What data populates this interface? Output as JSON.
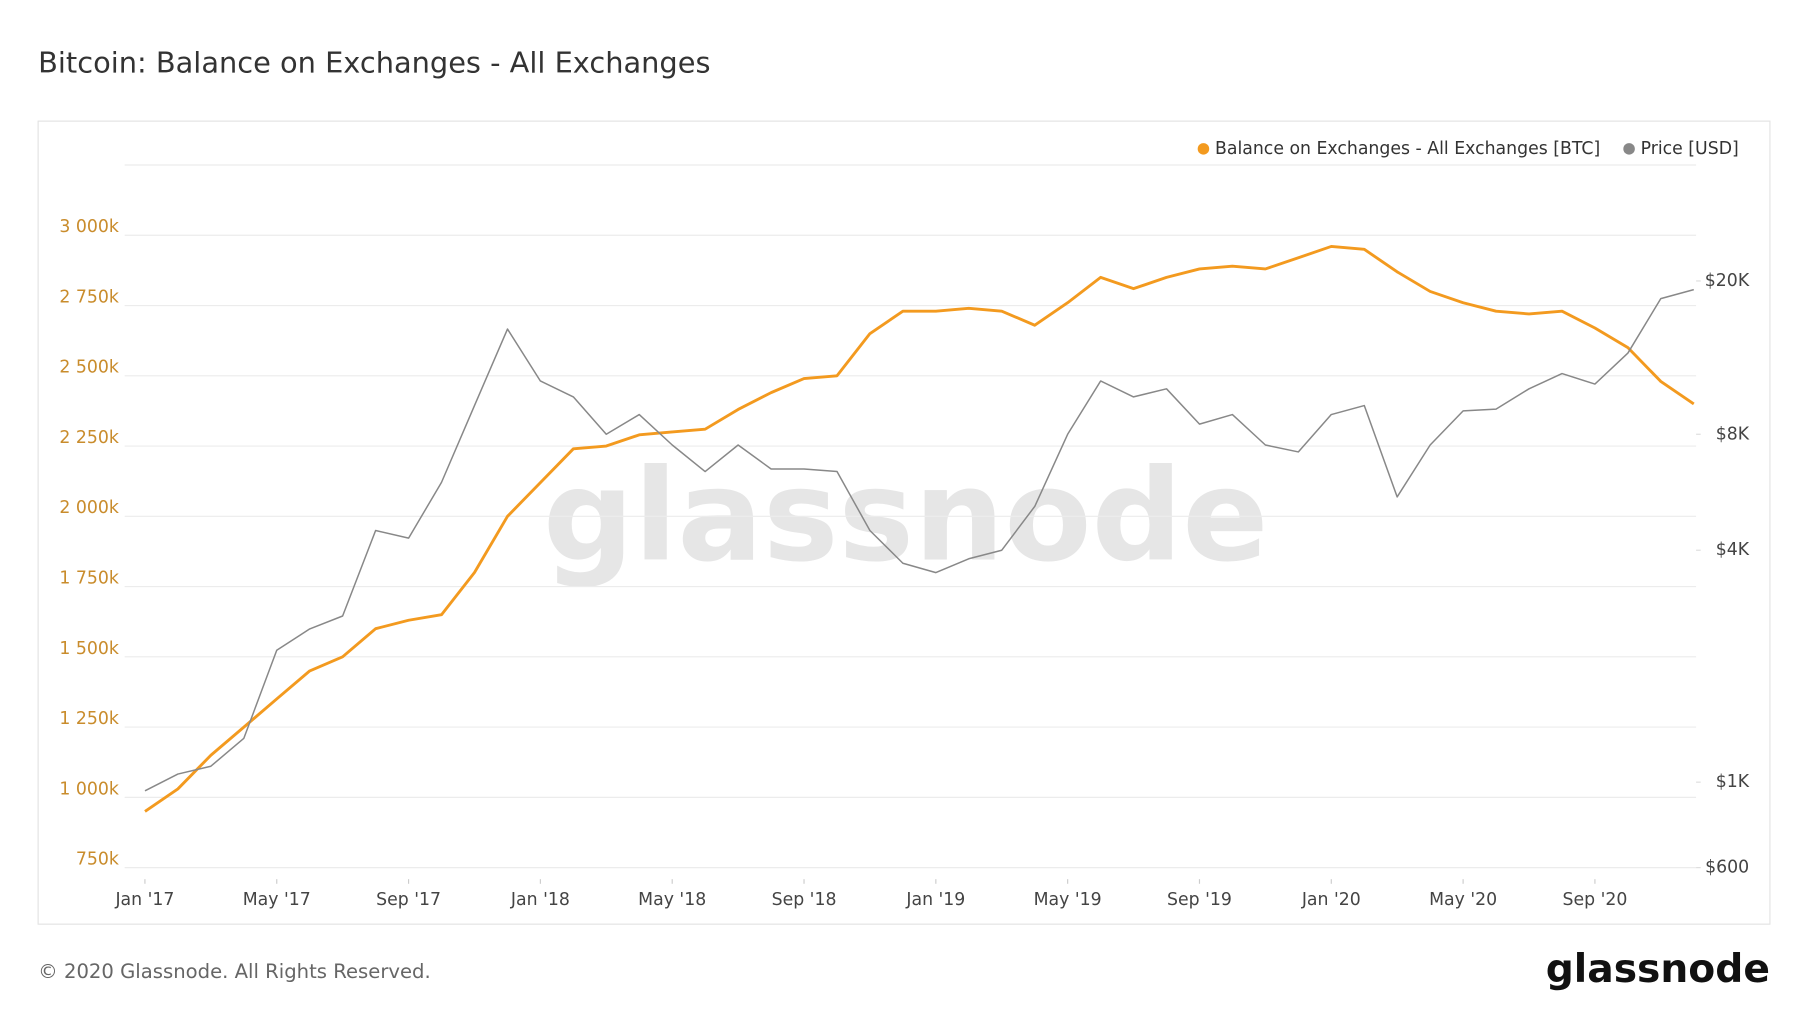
{
  "chart_data": {
    "type": "line",
    "title": "Bitcoin: Balance on Exchanges - All Exchanges",
    "x": [
      "2017-01",
      "2017-02",
      "2017-03",
      "2017-04",
      "2017-05",
      "2017-06",
      "2017-07",
      "2017-08",
      "2017-09",
      "2017-10",
      "2017-11",
      "2017-12",
      "2018-01",
      "2018-02",
      "2018-03",
      "2018-04",
      "2018-05",
      "2018-06",
      "2018-07",
      "2018-08",
      "2018-09",
      "2018-10",
      "2018-11",
      "2018-12",
      "2019-01",
      "2019-02",
      "2019-03",
      "2019-04",
      "2019-05",
      "2019-06",
      "2019-07",
      "2019-08",
      "2019-09",
      "2019-10",
      "2019-11",
      "2019-12",
      "2020-01",
      "2020-02",
      "2020-03",
      "2020-04",
      "2020-05",
      "2020-06",
      "2020-07",
      "2020-08",
      "2020-09",
      "2020-10",
      "2020-11",
      "2020-12"
    ],
    "series": [
      {
        "name": "Balance on Exchanges - All Exchanges [BTC]",
        "color": "#f39a1f",
        "values": [
          950000,
          1030000,
          1150000,
          1250000,
          1350000,
          1450000,
          1500000,
          1600000,
          1630000,
          1650000,
          1800000,
          2000000,
          2120000,
          2240000,
          2250000,
          2290000,
          2300000,
          2310000,
          2380000,
          2440000,
          2490000,
          2500000,
          2650000,
          2730000,
          2730000,
          2740000,
          2730000,
          2680000,
          2760000,
          2850000,
          2810000,
          2850000,
          2880000,
          2890000,
          2880000,
          2920000,
          2960000,
          2950000,
          2870000,
          2800000,
          2760000,
          2730000,
          2720000,
          2730000,
          2670000,
          2600000,
          2480000,
          2400000
        ]
      },
      {
        "name": "Price [USD]",
        "color": "#888888",
        "axis": "y2",
        "values": [
          950,
          1050,
          1100,
          1300,
          2200,
          2500,
          2700,
          4500,
          4300,
          6000,
          9500,
          15000,
          11000,
          10000,
          8000,
          9000,
          7500,
          6400,
          7500,
          6500,
          6500,
          6400,
          4500,
          3700,
          3500,
          3800,
          4000,
          5200,
          8000,
          11000,
          10000,
          10500,
          8500,
          9000,
          7500,
          7200,
          9000,
          9500,
          5500,
          7500,
          9200,
          9300,
          10500,
          11500,
          10800,
          13000,
          18000,
          19000
        ]
      }
    ],
    "xlim": [
      "2016-12",
      "2020-12"
    ],
    "xticks": [
      {
        "value": "2017-01",
        "label": "Jan '17"
      },
      {
        "value": "2017-05",
        "label": "May '17"
      },
      {
        "value": "2017-09",
        "label": "Sep '17"
      },
      {
        "value": "2018-01",
        "label": "Jan '18"
      },
      {
        "value": "2018-05",
        "label": "May '18"
      },
      {
        "value": "2018-09",
        "label": "Sep '18"
      },
      {
        "value": "2019-01",
        "label": "Jan '19"
      },
      {
        "value": "2019-05",
        "label": "May '19"
      },
      {
        "value": "2019-09",
        "label": "Sep '19"
      },
      {
        "value": "2020-01",
        "label": "Jan '20"
      },
      {
        "value": "2020-05",
        "label": "May '20"
      },
      {
        "value": "2020-09",
        "label": "Sep '20"
      }
    ],
    "ylim": [
      750000,
      3250000
    ],
    "yticks": [
      {
        "value": 750000,
        "label": "750k"
      },
      {
        "value": 1000000,
        "label": "1 000k"
      },
      {
        "value": 1250000,
        "label": "1 250k"
      },
      {
        "value": 1500000,
        "label": "1 500k"
      },
      {
        "value": 1750000,
        "label": "1 750k"
      },
      {
        "value": 2000000,
        "label": "2 000k"
      },
      {
        "value": 2250000,
        "label": "2 250k"
      },
      {
        "value": 2500000,
        "label": "2 500k"
      },
      {
        "value": 2750000,
        "label": "2 750k"
      },
      {
        "value": 3000000,
        "label": "3 000k"
      }
    ],
    "y2lim": [
      600,
      40000
    ],
    "y2scale": "log",
    "y2ticks": [
      {
        "value": 600,
        "label": "$600"
      },
      {
        "value": 1000,
        "label": "$1K"
      },
      {
        "value": 4000,
        "label": "$4K"
      },
      {
        "value": 8000,
        "label": "$8K"
      },
      {
        "value": 20000,
        "label": "$20K"
      }
    ],
    "grid": true,
    "legend": "top-right"
  },
  "watermark": "glassnode",
  "footer": {
    "copyright": "© 2020 Glassnode. All Rights Reserved.",
    "logo": "glassnode"
  }
}
